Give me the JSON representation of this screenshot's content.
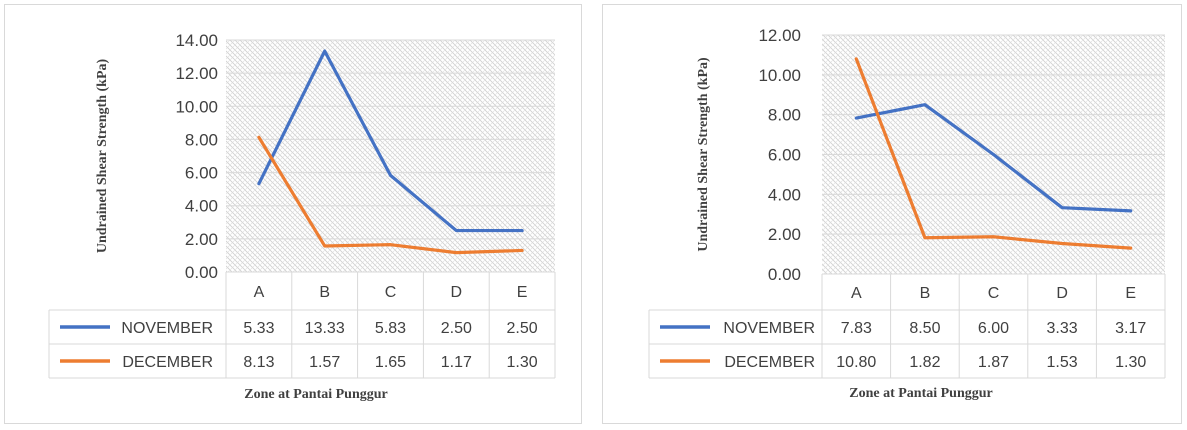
{
  "charts": [
    {
      "type": "line",
      "ylabel": "Undrained Shear Strength (kPa)",
      "xlabel": "Zone at Pantai Punggur",
      "categories": [
        "A",
        "B",
        "C",
        "D",
        "E"
      ],
      "yticks": [
        "0.00",
        "2.00",
        "4.00",
        "6.00",
        "8.00",
        "10.00",
        "12.00",
        "14.00"
      ],
      "ylim": [
        0,
        14
      ],
      "grid": true,
      "legend": "data-table",
      "series": [
        {
          "name": "NOVEMBER",
          "values": [
            5.33,
            13.33,
            5.83,
            2.5,
            2.5
          ],
          "labels": [
            "5.33",
            "13.33",
            "5.83",
            "2.50",
            "2.50"
          ],
          "color": "#4472C4"
        },
        {
          "name": "DECEMBER",
          "values": [
            8.13,
            1.57,
            1.65,
            1.17,
            1.3
          ],
          "labels": [
            "8.13",
            "1.57",
            "1.65",
            "1.17",
            "1.30"
          ],
          "color": "#ED7D31"
        }
      ]
    },
    {
      "type": "line",
      "ylabel": "Undrained Shear Strength (kPa)",
      "xlabel": "Zone at Pantai Punggur",
      "categories": [
        "A",
        "B",
        "C",
        "D",
        "E"
      ],
      "yticks": [
        "0.00",
        "2.00",
        "4.00",
        "6.00",
        "8.00",
        "10.00",
        "12.00"
      ],
      "ylim": [
        0,
        12
      ],
      "grid": true,
      "legend": "data-table",
      "series": [
        {
          "name": "NOVEMBER",
          "values": [
            7.83,
            8.5,
            6.0,
            3.33,
            3.17
          ],
          "labels": [
            "7.83",
            "8.50",
            "6.00",
            "3.33",
            "3.17"
          ],
          "color": "#4472C4"
        },
        {
          "name": "DECEMBER",
          "values": [
            10.8,
            1.82,
            1.87,
            1.53,
            1.3
          ],
          "labels": [
            "10.80",
            "1.82",
            "1.87",
            "1.53",
            "1.30"
          ],
          "color": "#ED7D31"
        }
      ]
    }
  ],
  "chart_data": [
    {
      "type": "line",
      "categories": [
        "A",
        "B",
        "C",
        "D",
        "E"
      ],
      "series": [
        {
          "name": "NOVEMBER",
          "values": [
            5.33,
            13.33,
            5.83,
            2.5,
            2.5
          ]
        },
        {
          "name": "DECEMBER",
          "values": [
            8.13,
            1.57,
            1.65,
            1.17,
            1.3
          ]
        }
      ],
      "xlabel": "Zone at Pantai Punggur",
      "ylabel": "Undrained Shear Strength (kPa)",
      "ylim": [
        0,
        14
      ]
    },
    {
      "type": "line",
      "categories": [
        "A",
        "B",
        "C",
        "D",
        "E"
      ],
      "series": [
        {
          "name": "NOVEMBER",
          "values": [
            7.83,
            8.5,
            6.0,
            3.33,
            3.17
          ]
        },
        {
          "name": "DECEMBER",
          "values": [
            10.8,
            1.82,
            1.87,
            1.53,
            1.3
          ]
        }
      ],
      "xlabel": "Zone at Pantai Punggur",
      "ylabel": "Undrained Shear Strength (kPa)",
      "ylim": [
        0,
        12
      ]
    }
  ]
}
